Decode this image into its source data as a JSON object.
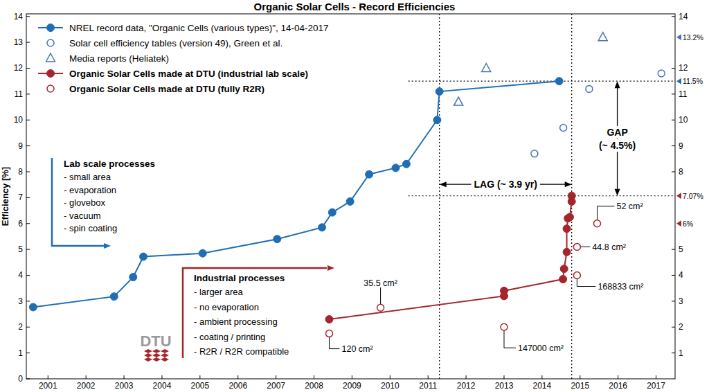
{
  "chart_data": {
    "type": "line",
    "title": "Organic Solar Cells - Record Efficiencies",
    "y_label": "Efficiency [%]",
    "xlim": [
      2000.43,
      2017.5
    ],
    "xticks": [
      2001,
      2002,
      2003,
      2004,
      2005,
      2006,
      2007,
      2008,
      2009,
      2010,
      2011,
      2012,
      2013,
      2014,
      2015,
      2016,
      2017
    ],
    "ylim": [
      0,
      14.1
    ],
    "yticks": [
      0,
      1,
      2,
      3,
      4,
      5,
      6,
      7,
      8,
      9,
      10,
      11,
      12,
      13,
      14
    ],
    "y2lim": [
      0,
      14.1
    ],
    "y2ticks": [
      1,
      2,
      3,
      4,
      5,
      8,
      9,
      10,
      11,
      12,
      14
    ],
    "grid": false,
    "legend": "upper left",
    "series": [
      {
        "name": "NREL record data, \"Organic Cells (various types)\", 14-04-2017",
        "type": "line",
        "color": "#1f6eb4",
        "marker": "circle",
        "line_style": "solid",
        "x": [
          2000.61,
          2002.74,
          2003.24,
          2003.51,
          2005.07,
          2007.03,
          2008.21,
          2008.48,
          2008.95,
          2009.45,
          2010.15,
          2010.43,
          2011.24,
          2011.3,
          2014.45
        ],
        "values": [
          2.77,
          3.18,
          3.93,
          4.72,
          4.85,
          5.4,
          5.85,
          6.43,
          6.85,
          7.9,
          8.15,
          8.3,
          10.0,
          11.1,
          11.5
        ]
      },
      {
        "name": "Solar cell efficiency tables (version 49), Green et al.",
        "type": "scatter",
        "color": "#4a72b8",
        "marker": "circle-open",
        "line_style": "none",
        "x": [
          2013.8,
          2014.56,
          2015.24,
          2017.14
        ],
        "values": [
          8.7,
          9.7,
          11.2,
          11.8
        ]
      },
      {
        "name": "Media reports (Heliatek)",
        "type": "scatter",
        "color": "#4a72b8",
        "marker": "triangle-open",
        "line_style": "none",
        "x": [
          2011.8,
          2012.53,
          2015.6
        ],
        "values": [
          10.7,
          12.0,
          13.2
        ]
      },
      {
        "name": "Organic Solar Cells made at DTU (industrial lab scale)",
        "type": "line",
        "color": "#a4262c",
        "marker": "circle",
        "line_style": "solid",
        "x": [
          2008.4,
          2013.0,
          2013.0,
          2014.55,
          2014.58,
          2014.65,
          2014.65,
          2014.68,
          2014.73,
          2014.78,
          2014.78
        ],
        "values": [
          2.3,
          3.2,
          3.4,
          3.85,
          4.25,
          4.9,
          5.8,
          6.2,
          6.25,
          6.85,
          7.07
        ]
      },
      {
        "name": "Organic Solar Cells made at DTU (fully R2R)",
        "type": "scatter",
        "color": "#a4262c",
        "marker": "circle-open",
        "line_style": "none",
        "x": [
          2008.4,
          2009.75,
          2013.0,
          2014.92,
          2014.92,
          2015.45
        ],
        "values": [
          1.75,
          2.75,
          2.0,
          4.0,
          5.1,
          6.0
        ],
        "point_labels": [
          "120 cm²",
          "35.5 cm²",
          "147000 cm²",
          "168833 cm²",
          "44.8 cm²",
          "52 cm²"
        ]
      }
    ],
    "reference_lines": {
      "x": [
        2011.3,
        2014.78
      ],
      "y": [
        11.5,
        7.07
      ]
    },
    "annotations": {
      "lag": "LAG (~ 3.9 yr)",
      "gap": [
        "GAP",
        "(~ 4.5%)"
      ]
    },
    "right_markers": [
      {
        "value": 13.2,
        "label": "13.2%",
        "color": "#4a72b8"
      },
      {
        "value": 11.5,
        "label": "11.5%",
        "color": "#1f6eb4"
      },
      {
        "value": 7.07,
        "label": "7.07%",
        "color": "#a4262c"
      },
      {
        "value": 6,
        "label": "6%",
        "color": "#a4262c"
      }
    ],
    "lab_scale": {
      "title": "Lab scale processes",
      "items": [
        "- small area",
        "- evaporation",
        "- glovebox",
        "- vacuum",
        "- spin coating"
      ]
    },
    "industrial": {
      "title": "Industrial processes",
      "items": [
        "- larger area",
        "- no evaporation",
        "- ambient processing",
        "- coating / printing",
        "- R2R / R2R compatible"
      ]
    },
    "logo": "DTU"
  }
}
